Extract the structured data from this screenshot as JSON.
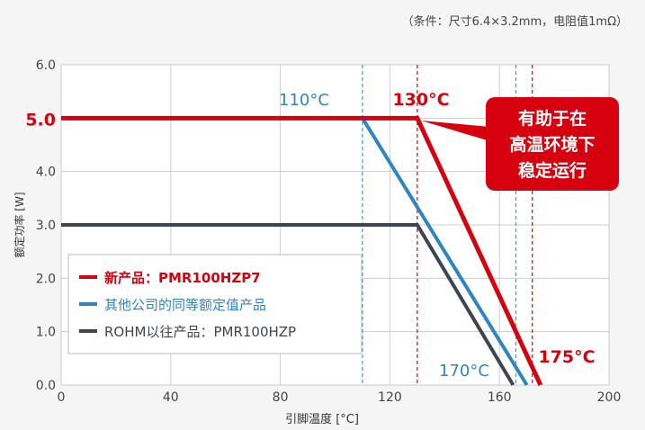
{
  "note": "（条件：尺寸6.4×3.2mm，电阻值1mΩ）",
  "chart_data": {
    "type": "line",
    "xlabel": "引脚温度 [°C]",
    "ylabel": "额定功率 [W]",
    "xlim": [
      0,
      200
    ],
    "ylim": [
      0,
      6
    ],
    "x_ticks": [
      "0",
      "40",
      "80",
      "120",
      "160",
      "200"
    ],
    "y_ticks": [
      "0.0",
      "1.0",
      "2.0",
      "3.0",
      "4.0",
      "5.0",
      "6.0"
    ],
    "grid": true,
    "legend_position": "lower-left",
    "series": [
      {
        "name": "新产品：PMR100HZP7",
        "color": "#d7000f",
        "x": [
          0,
          130,
          175
        ],
        "y": [
          5.0,
          5.0,
          0.0
        ]
      },
      {
        "name": "其他公司的同等额定值产品",
        "color": "#2e86c1",
        "x": [
          0,
          110,
          170
        ],
        "y": [
          5.0,
          5.0,
          0.0
        ]
      },
      {
        "name": "ROHM以往产品：PMR100HZP",
        "color": "#3d4650",
        "x": [
          0,
          130,
          165
        ],
        "y": [
          3.0,
          3.0,
          0.0
        ]
      }
    ],
    "reference_lines": [
      {
        "x": 110,
        "color": "#2e9fd6"
      },
      {
        "x": 130,
        "color": "#d7000f"
      },
      {
        "x": 166,
        "color": "#2e9fd6"
      },
      {
        "x": 172,
        "color": "#d7000f"
      }
    ],
    "annotations": {
      "y_highlight": "5.0",
      "t110": "110°C",
      "t130": "130°C",
      "t170": "170°C",
      "t175": "175°C",
      "callout": [
        "有助于在",
        "高温环境下",
        "稳定运行"
      ]
    }
  }
}
